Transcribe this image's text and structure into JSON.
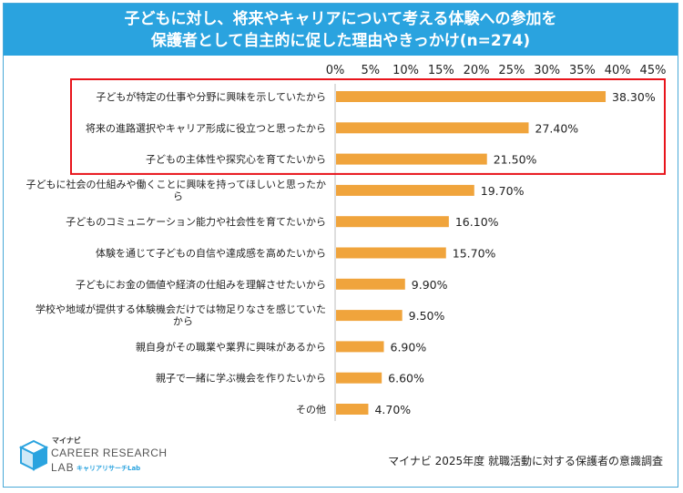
{
  "header": {
    "title_line1": "子どもに対し、将来やキャリアについて考える体験への参加を",
    "title_line2": "保護者として自主的に促した理由やきっかけ(n=274)"
  },
  "chart_data": {
    "type": "bar",
    "orientation": "horizontal",
    "title": "子どもに対し、将来やキャリアについて考える体験への参加を保護者として自主的に促した理由やきっかけ(n=274)",
    "xlim": [
      0,
      45
    ],
    "ticks": [
      "0%",
      "5%",
      "10%",
      "15%",
      "20%",
      "25%",
      "30%",
      "35%",
      "40%",
      "45%"
    ],
    "tick_values": [
      0,
      5,
      10,
      15,
      20,
      25,
      30,
      35,
      40,
      45
    ],
    "bar_color": "#f0a43c",
    "highlight_color": "#e8141b",
    "highlighted_count": 3,
    "categories": [
      [
        "子どもが特定の仕事や分野に興味を示していたから"
      ],
      [
        "将来の進路選択やキャリア形成に役立つと思ったから"
      ],
      [
        "子どもの主体性や探究心を育てたいから"
      ],
      [
        "子どもに社会の仕組みや働くことに興味を持ってほしいと思ったか",
        "ら"
      ],
      [
        "子どものコミュニケーション能力や社会性を育てたいから"
      ],
      [
        "体験を通じて子どもの自信や達成感を高めたいから"
      ],
      [
        "子どもにお金の価値や経済の仕組みを理解させたいから"
      ],
      [
        "学校や地域が提供する体験機会だけでは物足りなさを感じていた",
        "から"
      ],
      [
        "親自身がその職業や業界に興味があるから"
      ],
      [
        "親子で一緒に学ぶ機会を作りたいから"
      ],
      [
        "その他"
      ]
    ],
    "values": [
      38.3,
      27.4,
      21.5,
      19.7,
      16.1,
      15.7,
      9.9,
      9.5,
      6.9,
      6.6,
      4.7
    ],
    "value_labels": [
      "38.30%",
      "27.40%",
      "21.50%",
      "19.70%",
      "16.10%",
      "15.70%",
      "9.90%",
      "9.50%",
      "6.90%",
      "6.60%",
      "4.70%"
    ]
  },
  "logo": {
    "small": "マイナビ",
    "main": "CAREER RESEARCH",
    "sub1": "LAB",
    "sub2": "キャリアリサーチLab"
  },
  "source": "マイナビ 2025年度 就職活動に対する保護者の意識調査",
  "colors": {
    "title_bg": "#2aa3df",
    "frame": "#49a9d8",
    "logo_blue": "#2aa3df"
  }
}
